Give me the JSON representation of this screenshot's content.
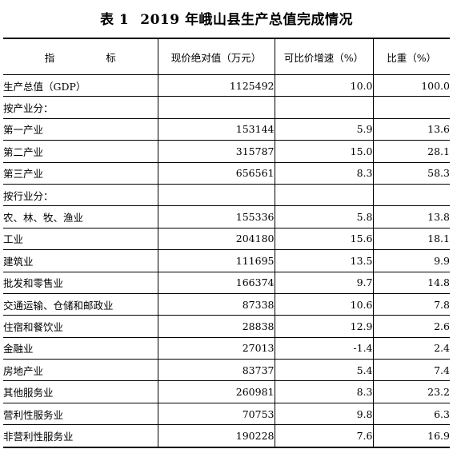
{
  "title": {
    "prefix": "表 1",
    "text": "2019 年峨山县生产总值完成情况"
  },
  "table": {
    "headers": [
      "指 标",
      "现价绝对值（万元）",
      "可比价增速（%）",
      "比重（%）"
    ],
    "rows": [
      {
        "label": "生产总值（GDP）",
        "level": 0,
        "value": "1125492",
        "growth": "10.0",
        "share": "100.0"
      },
      {
        "label": "按产业分：",
        "level": 0,
        "value": "",
        "growth": "",
        "share": ""
      },
      {
        "label": "第一产业",
        "level": 1,
        "value": "153144",
        "growth": "5.9",
        "share": "13.6"
      },
      {
        "label": "第二产业",
        "level": 1,
        "value": "315787",
        "growth": "15.0",
        "share": "28.1"
      },
      {
        "label": "第三产业",
        "level": 1,
        "value": "656561",
        "growth": "8.3",
        "share": "58.3"
      },
      {
        "label": "按行业分：",
        "level": 0,
        "value": "",
        "growth": "",
        "share": ""
      },
      {
        "label": "农、林、牧、渔业",
        "level": 1,
        "value": "155336",
        "growth": "5.8",
        "share": "13.8"
      },
      {
        "label": "工业",
        "level": 1,
        "value": "204180",
        "growth": "15.6",
        "share": "18.1"
      },
      {
        "label": "建筑业",
        "level": 1,
        "value": "111695",
        "growth": "13.5",
        "share": "9.9"
      },
      {
        "label": "批发和零售业",
        "level": 1,
        "value": "166374",
        "growth": "9.7",
        "share": "14.8"
      },
      {
        "label": "交通运输、仓储和邮政业",
        "level": 1,
        "value": "87338",
        "growth": "10.6",
        "share": "7.8"
      },
      {
        "label": "住宿和餐饮业",
        "level": 1,
        "value": "28838",
        "growth": "12.9",
        "share": "2.6"
      },
      {
        "label": "金融业",
        "level": 1,
        "value": "27013",
        "growth": "-1.4",
        "share": "2.4"
      },
      {
        "label": "房地产业",
        "level": 1,
        "value": "83737",
        "growth": "5.4",
        "share": "7.4"
      },
      {
        "label": "其他服务业",
        "level": 1,
        "value": "260981",
        "growth": "8.3",
        "share": "23.2"
      },
      {
        "label": "营利性服务业",
        "level": 2,
        "value": "70753",
        "growth": "9.8",
        "share": "6.3"
      },
      {
        "label": "非营利性服务业",
        "level": 2,
        "value": "190228",
        "growth": "7.6",
        "share": "16.9"
      }
    ]
  }
}
